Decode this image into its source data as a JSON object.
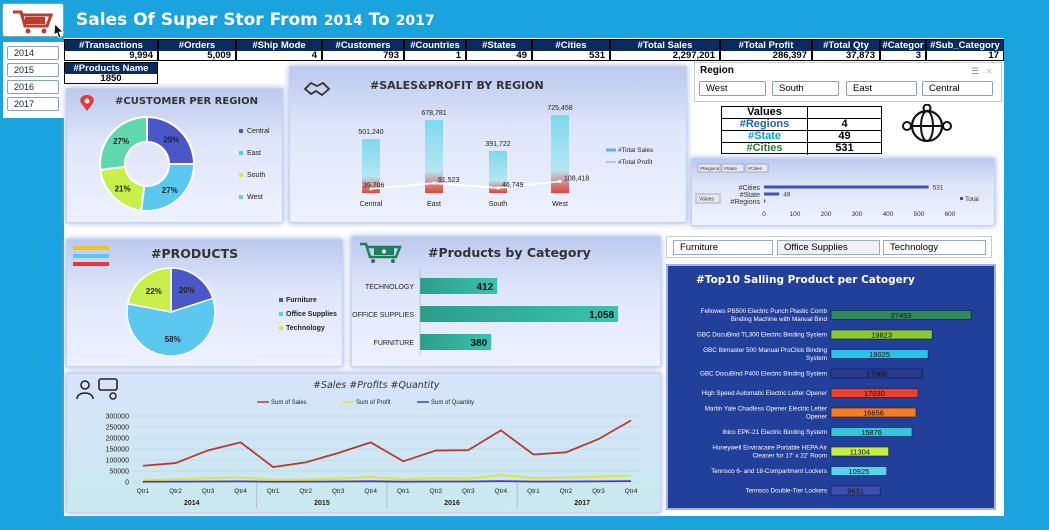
{
  "header": {
    "title": "Sales Of Super Stor From ",
    "year_from": "2014",
    "title_mid": " To ",
    "year_to": "2017"
  },
  "years": [
    "2014",
    "2015",
    "2016",
    "2017"
  ],
  "kpis": [
    {
      "label": "#Transactions",
      "value": "9,994"
    },
    {
      "label": "#Orders",
      "value": "5,009"
    },
    {
      "label": "#Ship Mode",
      "value": "4"
    },
    {
      "label": "#Customers",
      "value": "793"
    },
    {
      "label": "#Countries",
      "value": "1"
    },
    {
      "label": "#States",
      "value": "49"
    },
    {
      "label": "#Cities",
      "value": "531"
    },
    {
      "label": "#Total Sales",
      "value": "2,297,201"
    },
    {
      "label": "#Total Profit",
      "value": "286,397"
    },
    {
      "label": "#Total Qty",
      "value": "37,873"
    },
    {
      "label": "#Categor",
      "value": "3"
    },
    {
      "label": "#Sub_Category",
      "value": "17"
    }
  ],
  "products_name": {
    "label": "#Products Name",
    "value": "1850"
  },
  "customer_region": {
    "title": "#CUSTOMER PER REGION",
    "slices": [
      {
        "name": "Central",
        "pct": 25,
        "color": "#4b57c6"
      },
      {
        "name": "East",
        "pct": 27,
        "color": "#5ac8ef"
      },
      {
        "name": "South",
        "pct": 21,
        "color": "#c9ef4a"
      },
      {
        "name": "West",
        "pct": 27,
        "color": "#5fd8b0"
      }
    ],
    "labels": [
      "25%",
      "27%",
      "21%",
      "27%"
    ]
  },
  "region": {
    "title": "#SALES&PROFIT BY REGION",
    "categories": [
      "Central",
      "East",
      "South",
      "West"
    ],
    "sales": [
      501240,
      678781,
      391722,
      725458
    ],
    "profit": [
      39706,
      91523,
      46749,
      108418
    ],
    "sales_labels": [
      "501,240",
      "678,781",
      "391,722",
      "725,458"
    ],
    "profit_labels": [
      "39,706",
      "91,523",
      "46,749",
      "108,418"
    ],
    "legend_sales": "#Total Sales",
    "legend_profit": "#Total Profit"
  },
  "region_slicer": {
    "title": "Region",
    "items": [
      "West",
      "South",
      "East",
      "Central"
    ]
  },
  "values_table": {
    "header": "Values",
    "rows": [
      {
        "k": "#Regions",
        "v": "4"
      },
      {
        "k": "#State",
        "v": "49"
      },
      {
        "k": "#Cities",
        "v": "531"
      }
    ]
  },
  "cities_chart": {
    "buttons": [
      "#Regions",
      "#State",
      "#Cities"
    ],
    "values_btn": "Values",
    "categories": [
      "#Cities",
      "#State",
      "#Regions"
    ],
    "values": [
      531,
      49,
      4
    ],
    "labels": [
      "531",
      "49",
      ""
    ],
    "ticks": [
      "0",
      "100",
      "200",
      "300",
      "400",
      "500",
      "600"
    ],
    "legend": "Total"
  },
  "products": {
    "title": "#PRODUCTS",
    "slices": [
      {
        "name": "Furniture",
        "pct": 20,
        "color": "#4b57c6"
      },
      {
        "name": "Office Supplies",
        "pct": 58,
        "color": "#5ac8ef"
      },
      {
        "name": "Technology",
        "pct": 22,
        "color": "#c9ef4a"
      }
    ],
    "labels": [
      "20%",
      "58%",
      "22%"
    ]
  },
  "by_category": {
    "title": "#Products by Category",
    "categories": [
      "TECHNOLOGY",
      "OFFICE SUPPLIES",
      "FURNITURE"
    ],
    "values": [
      412,
      1058,
      380
    ],
    "labels": [
      "412",
      "1,058",
      "380"
    ]
  },
  "cat_slicer": [
    "Furniture",
    "Office Supplies",
    "Technology"
  ],
  "top10": {
    "title": "#Top10 Salling Product per Catogery",
    "items": [
      {
        "name": "Fellowes PB500 Electric Punch Plastic Comb Binding Machine with Manual Bind",
        "value": 27453,
        "label": "27453",
        "color": "#2e8b57"
      },
      {
        "name": "GBC DocuBind TL300 Electric Binding System",
        "value": 19823,
        "label": "19823",
        "color": "#8bc832"
      },
      {
        "name": "GBC Ibimaster 500 Manual ProClick Binding System",
        "value": 19025,
        "label": "19025",
        "color": "#2ec0e6"
      },
      {
        "name": "GBC DocuBind P400 Electric Binding System",
        "value": 17965,
        "label": "17965",
        "color": "#2c3a8c"
      },
      {
        "name": "High Speed Automatic Electric Letter Opener",
        "value": 17030,
        "label": "17030",
        "color": "#e8402a"
      },
      {
        "name": "Martin Yale Chadless Opener Electric Letter Opener",
        "value": 16656,
        "label": "16656",
        "color": "#f57c1f"
      },
      {
        "name": "Ibico EPK-21 Electric Binding System",
        "value": 15876,
        "label": "15876",
        "color": "#35c6d6"
      },
      {
        "name": "Honeywell Enviracaire Portable HEPA Air Cleaner for 17' x 22' Room",
        "value": 11304,
        "label": "11304",
        "color": "#c8ef3c"
      },
      {
        "name": "Tennsco 6- and 18-Compartment Lockers",
        "value": 10925,
        "label": "10925",
        "color": "#5ad0f0"
      },
      {
        "name": "Tennsco Double-Tier Lockers",
        "value": 9631,
        "label": "9631",
        "color": "#3d4fb0"
      }
    ]
  },
  "chart_data": {
    "type": "line",
    "title": "#Sales #Profits #Quantity",
    "x": [
      "Qtr1",
      "Qtr2",
      "Qtr3",
      "Qtr4",
      "Qtr1",
      "Qtr2",
      "Qtr3",
      "Qtr4",
      "Qtr1",
      "Qtr2",
      "Qtr3",
      "Qtr4",
      "Qtr1",
      "Qtr2",
      "Qtr3",
      "Qtr4"
    ],
    "years": [
      "2014",
      "2015",
      "2016",
      "2017"
    ],
    "ylim": [
      0,
      300000
    ],
    "yticks": [
      "0",
      "50000",
      "100000",
      "150000",
      "200000",
      "250000",
      "300000"
    ],
    "series": [
      {
        "name": "Sum of Sales",
        "color": "#b83a2e",
        "values": [
          74000,
          86000,
          144000,
          180000,
          68000,
          89000,
          132000,
          180000,
          94000,
          143000,
          145000,
          235000,
          125000,
          135000,
          195000,
          280000
        ]
      },
      {
        "name": "Sum of Profit",
        "color": "#e3e82a",
        "values": [
          8000,
          12000,
          17000,
          21000,
          10000,
          11000,
          15000,
          23000,
          12000,
          17000,
          16000,
          31000,
          18000,
          20000,
          25000,
          29000
        ]
      },
      {
        "name": "Sum of Quantity",
        "color": "#4b3ea8",
        "values": [
          1000,
          1600,
          2200,
          3000,
          1200,
          1700,
          2400,
          3100,
          1500,
          2200,
          2300,
          3800,
          1900,
          2200,
          3000,
          4000
        ]
      }
    ]
  }
}
